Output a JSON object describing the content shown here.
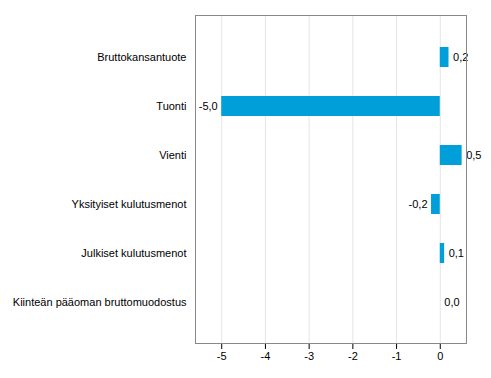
{
  "chart_data": {
    "type": "bar",
    "orientation": "horizontal",
    "categories": [
      "Bruttokansantuote",
      "Tuonti",
      "Vienti",
      "Yksityiset kulutusmenot",
      "Julkiset kulutusmenot",
      "Kiinteän pääoman bruttomuodostus"
    ],
    "values": [
      0.2,
      -5.0,
      0.5,
      -0.2,
      0.1,
      0.0
    ],
    "value_labels": [
      "0,2",
      "-5,0",
      "0,5",
      "-0,2",
      "0,1",
      "0,0"
    ],
    "color": "#009fda",
    "xlim": [
      -5.6,
      0.6
    ],
    "xticks": [
      -5,
      -4,
      -3,
      -2,
      -1,
      0
    ],
    "grid": true,
    "data_labels": true
  }
}
